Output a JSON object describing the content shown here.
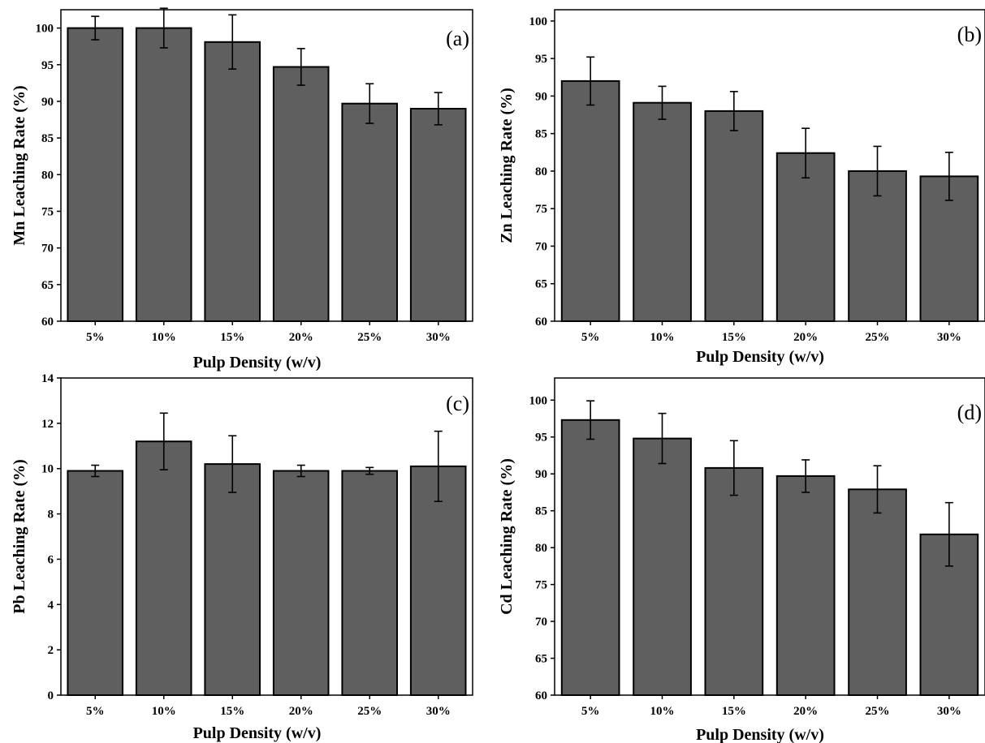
{
  "figure": {
    "panels": [
      {
        "id": "a",
        "panel_label": "(a)"
      },
      {
        "id": "b",
        "panel_label": "(b)"
      },
      {
        "id": "c",
        "panel_label": "(c)"
      },
      {
        "id": "d",
        "panel_label": "(d)"
      }
    ]
  },
  "colors": {
    "bar_fill": "#5f5f5f",
    "bar_stroke": "#000000",
    "axis": "#000000",
    "background": "#ffffff"
  },
  "chart_data": [
    {
      "type": "bar",
      "panel": "(a)",
      "xlabel": "Pulp Density (w/v)",
      "ylabel": "Mn Leaching Rate (%)",
      "categories": [
        "5%",
        "10%",
        "15%",
        "20%",
        "25%",
        "30%"
      ],
      "values": [
        100.0,
        100.0,
        98.1,
        94.7,
        89.7,
        89.0
      ],
      "errors": [
        1.6,
        2.7,
        3.7,
        2.5,
        2.7,
        2.2
      ],
      "ylim": [
        60,
        102.5
      ],
      "yticks": [
        60,
        65,
        70,
        75,
        80,
        85,
        90,
        95,
        100
      ],
      "grid": false,
      "legend": "none"
    },
    {
      "type": "bar",
      "panel": "(b)",
      "xlabel": "Pulp Density (w/v)",
      "ylabel": "Zn Leaching Rate (%)",
      "categories": [
        "5%",
        "10%",
        "15%",
        "20%",
        "25%",
        "30%"
      ],
      "values": [
        92.0,
        89.1,
        88.0,
        82.4,
        80.0,
        79.3
      ],
      "errors": [
        3.2,
        2.2,
        2.6,
        3.3,
        3.3,
        3.2
      ],
      "ylim": [
        60,
        101.5
      ],
      "yticks": [
        60,
        65,
        70,
        75,
        80,
        85,
        90,
        95,
        100
      ],
      "grid": false,
      "legend": "none"
    },
    {
      "type": "bar",
      "panel": "(c)",
      "xlabel": "Pulp Density (w/v)",
      "ylabel": "Pb Leaching Rate (%)",
      "categories": [
        "5%",
        "10%",
        "15%",
        "20%",
        "25%",
        "30%"
      ],
      "values": [
        9.9,
        11.2,
        10.2,
        9.9,
        9.9,
        10.1
      ],
      "errors": [
        0.25,
        1.25,
        1.25,
        0.25,
        0.15,
        1.55
      ],
      "ylim": [
        0,
        14
      ],
      "yticks": [
        0,
        2,
        4,
        6,
        8,
        10,
        12,
        14
      ],
      "grid": false,
      "legend": "none"
    },
    {
      "type": "bar",
      "panel": "(d)",
      "xlabel": "Pulp Density (w/v)",
      "ylabel": "Cd Leaching Rate (%)",
      "categories": [
        "5%",
        "10%",
        "15%",
        "20%",
        "25%",
        "30%"
      ],
      "values": [
        97.3,
        94.8,
        90.8,
        89.7,
        87.9,
        81.8
      ],
      "errors": [
        2.6,
        3.4,
        3.7,
        2.2,
        3.2,
        4.3
      ],
      "ylim": [
        60,
        103
      ],
      "yticks": [
        60,
        65,
        70,
        75,
        80,
        85,
        90,
        95,
        100
      ],
      "grid": false,
      "legend": "none"
    }
  ]
}
